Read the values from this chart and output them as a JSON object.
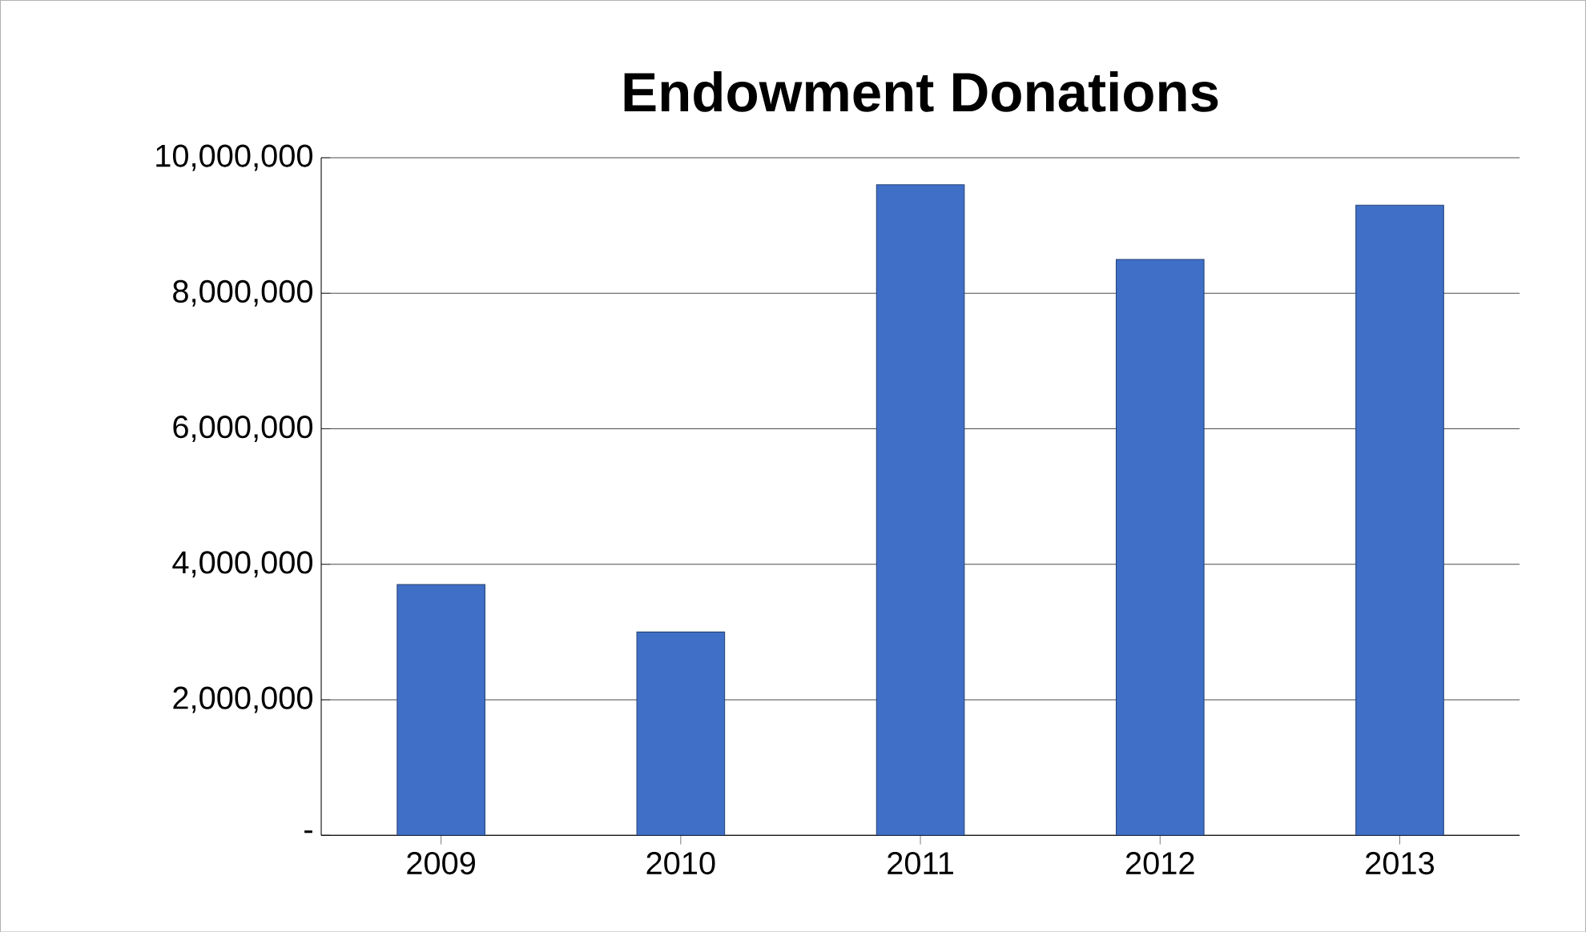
{
  "chart_data": {
    "type": "bar",
    "title": "Endowment Donations",
    "categories": [
      "2009",
      "2010",
      "2011",
      "2012",
      "2013"
    ],
    "values": [
      3700000,
      3000000,
      9600000,
      8500000,
      9300000
    ],
    "color": "#3f6fc6",
    "ylim": [
      0,
      10000000
    ],
    "yticks": [
      {
        "value": 0,
        "label": "-"
      },
      {
        "value": 2000000,
        "label": "2,000,000"
      },
      {
        "value": 4000000,
        "label": "4,000,000"
      },
      {
        "value": 6000000,
        "label": "6,000,000"
      },
      {
        "value": 8000000,
        "label": "8,000,000"
      },
      {
        "value": 10000000,
        "label": "10,000,000"
      }
    ],
    "grid": true
  }
}
